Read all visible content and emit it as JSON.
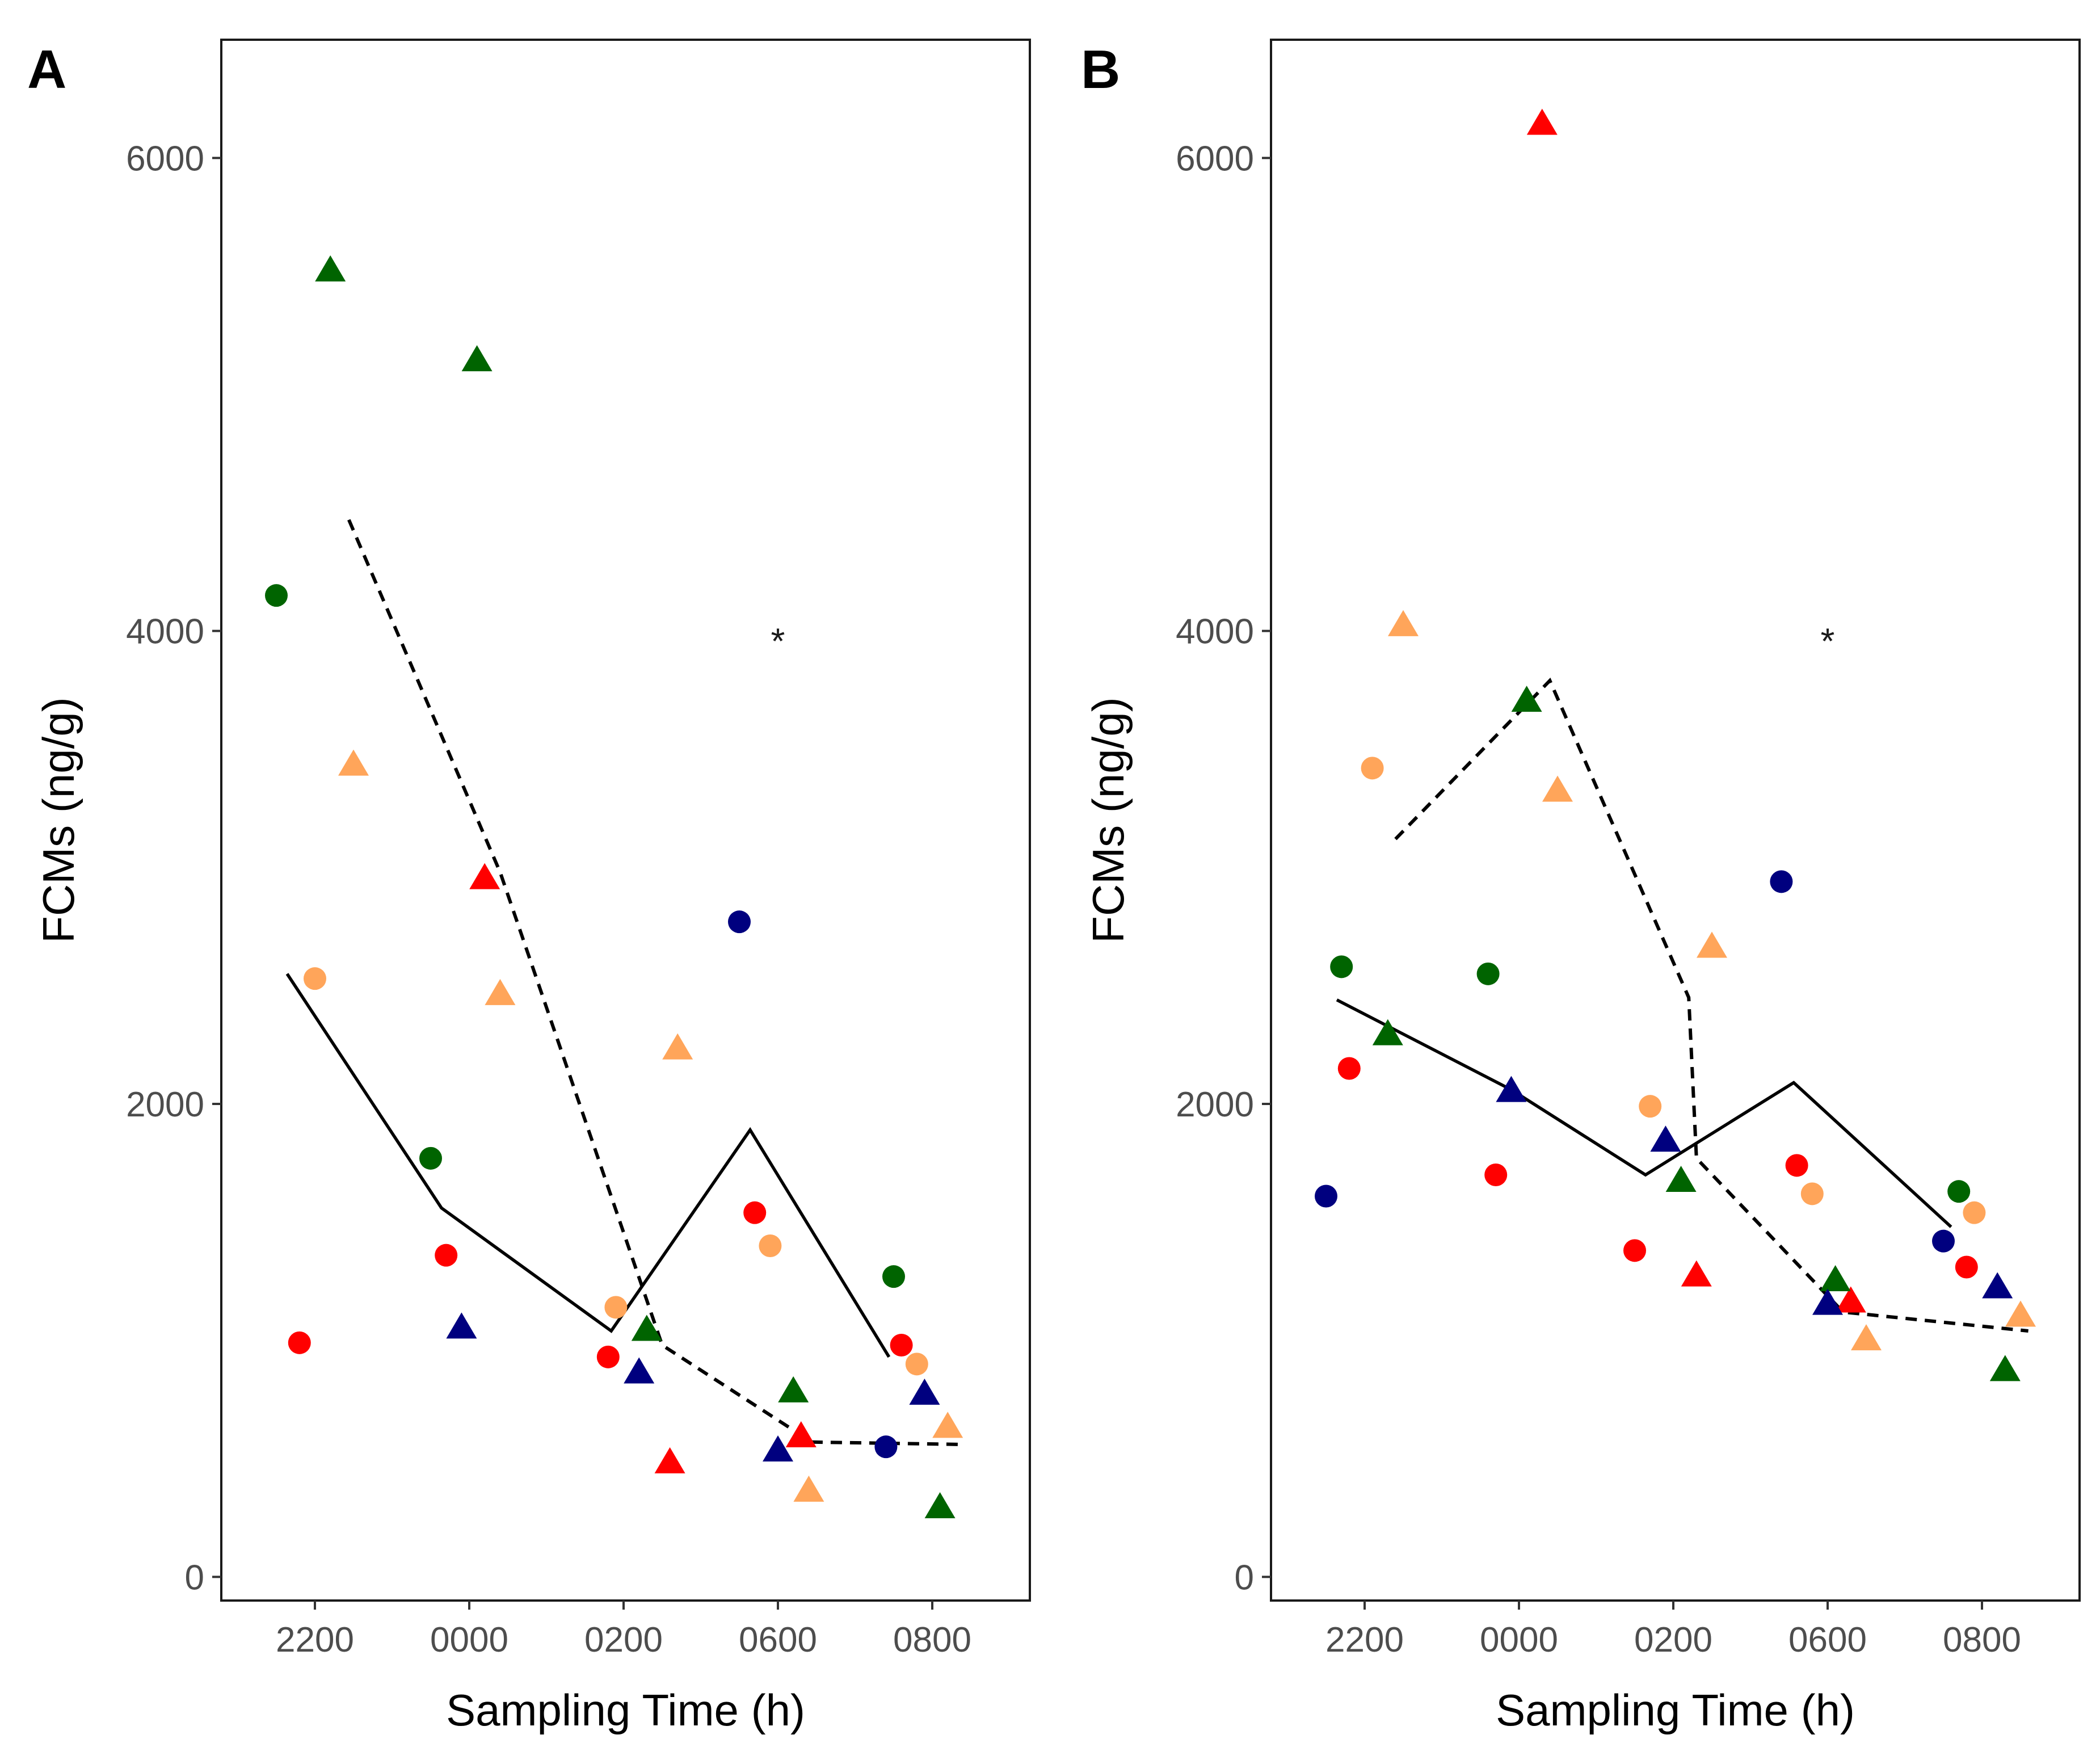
{
  "chart_data": [
    {
      "panel_label": "A",
      "type": "scatter",
      "xlabel": "Sampling Time (h)",
      "ylabel": "FCMs (ng/g)",
      "categories": [
        "2200",
        "0000",
        "0200",
        "0600",
        "0800"
      ],
      "ylim": [
        -100,
        6500
      ],
      "yticks": [
        0,
        2000,
        4000,
        6000
      ],
      "grid": false,
      "annotations": [
        {
          "text": "*",
          "x": "0600",
          "y": 4000
        }
      ],
      "point_groups": [
        {
          "name": "red circles",
          "color": "#ff0000",
          "shape": "circle",
          "points": [
            {
              "x": 2200,
              "offset": -0.1,
              "y": 990
            },
            {
              "x": "0000",
              "offset": -0.15,
              "y": 1360
            },
            {
              "x": "0200",
              "offset": -0.1,
              "y": 930
            },
            {
              "x": "0600",
              "offset": -0.15,
              "y": 1540
            },
            {
              "x": "0800",
              "offset": -0.2,
              "y": 980
            }
          ]
        },
        {
          "name": "red triangles",
          "color": "#ff0000",
          "shape": "triangle",
          "points": [
            {
              "x": "0000",
              "offset": 0.1,
              "y": 2950
            },
            {
              "x": "0200",
              "offset": 0.3,
              "y": 480
            },
            {
              "x": "0600",
              "offset": 0.15,
              "y": 590
            }
          ]
        },
        {
          "name": "green circles",
          "color": "#006400",
          "shape": "circle",
          "points": [
            {
              "x": 2200,
              "offset": -0.25,
              "y": 4150
            },
            {
              "x": "0000",
              "offset": -0.25,
              "y": 1770
            },
            {
              "x": "0800",
              "offset": -0.25,
              "y": 1270
            }
          ]
        },
        {
          "name": "green triangles",
          "color": "#006400",
          "shape": "triangle",
          "points": [
            {
              "x": 2200,
              "offset": 0.1,
              "y": 5520
            },
            {
              "x": "0000",
              "offset": 0.05,
              "y": 5140
            },
            {
              "x": "0200",
              "offset": 0.15,
              "y": 1040
            },
            {
              "x": "0600",
              "offset": 0.1,
              "y": 780
            },
            {
              "x": "0800",
              "offset": 0.05,
              "y": 290
            }
          ]
        },
        {
          "name": "orange circles",
          "color": "#ffa55a",
          "shape": "circle",
          "points": [
            {
              "x": 2200,
              "offset": 0,
              "y": 2530
            },
            {
              "x": "0200",
              "offset": -0.05,
              "y": 1140
            },
            {
              "x": "0600",
              "offset": -0.05,
              "y": 1400
            },
            {
              "x": "0800",
              "offset": -0.1,
              "y": 900
            }
          ]
        },
        {
          "name": "orange triangles",
          "color": "#ffa55a",
          "shape": "triangle",
          "points": [
            {
              "x": 2200,
              "offset": 0.25,
              "y": 3430
            },
            {
              "x": "0000",
              "offset": 0.2,
              "y": 2460
            },
            {
              "x": "0200",
              "offset": 0.35,
              "y": 2230
            },
            {
              "x": "0600",
              "offset": 0.2,
              "y": 360
            },
            {
              "x": "0800",
              "offset": 0.1,
              "y": 630
            }
          ]
        },
        {
          "name": "blue circles",
          "color": "#00007f",
          "shape": "circle",
          "points": [
            {
              "x": "0600",
              "offset": -0.25,
              "y": 2770
            },
            {
              "x": "0800",
              "offset": -0.3,
              "y": 550
            }
          ]
        },
        {
          "name": "blue triangles",
          "color": "#00007f",
          "shape": "triangle",
          "points": [
            {
              "x": "0000",
              "offset": -0.05,
              "y": 1050
            },
            {
              "x": "0200",
              "offset": 0.1,
              "y": 860
            },
            {
              "x": "0600",
              "offset": 0,
              "y": 530
            },
            {
              "x": "0800",
              "offset": -0.05,
              "y": 770
            }
          ]
        }
      ],
      "series": [
        {
          "name": "solid line",
          "style": "solid",
          "points": [
            {
              "x": 2200,
              "offset": -0.18,
              "y": 2550
            },
            {
              "x": "0000",
              "offset": -0.18,
              "y": 1560
            },
            {
              "x": "0200",
              "offset": -0.08,
              "y": 1040
            },
            {
              "x": "0600",
              "offset": -0.18,
              "y": 1890
            },
            {
              "x": "0800",
              "offset": -0.28,
              "y": 930
            }
          ]
        },
        {
          "name": "dashed line",
          "style": "dashed",
          "points": [
            {
              "x": 2200,
              "offset": 0.22,
              "y": 4470
            },
            {
              "x": "0000",
              "offset": 0.2,
              "y": 2980
            },
            {
              "x": "0200",
              "offset": 0.25,
              "y": 980
            },
            {
              "x": "0600",
              "offset": 0.22,
              "y": 570
            },
            {
              "x": "0800",
              "offset": 0.2,
              "y": 560
            }
          ]
        }
      ]
    },
    {
      "panel_label": "B",
      "type": "scatter",
      "xlabel": "Sampling Time (h)",
      "ylabel": "FCMs (ng/g)",
      "categories": [
        "2200",
        "0000",
        "0200",
        "0600",
        "0800"
      ],
      "ylim": [
        -100,
        6500
      ],
      "yticks": [
        0,
        2000,
        4000,
        6000
      ],
      "grid": false,
      "annotations": [
        {
          "text": "*",
          "x": "0600",
          "y": 4000
        }
      ],
      "point_groups": [
        {
          "name": "red circles",
          "color": "#ff0000",
          "shape": "circle",
          "points": [
            {
              "x": 2200,
              "offset": -0.1,
              "y": 2150
            },
            {
              "x": "0000",
              "offset": -0.15,
              "y": 1700
            },
            {
              "x": "0200",
              "offset": -0.25,
              "y": 1380
            },
            {
              "x": "0600",
              "offset": -0.2,
              "y": 1740
            },
            {
              "x": "0800",
              "offset": -0.1,
              "y": 1310
            }
          ]
        },
        {
          "name": "red triangles",
          "color": "#ff0000",
          "shape": "triangle",
          "points": [
            {
              "x": "0000",
              "offset": 0.15,
              "y": 6140
            },
            {
              "x": "0200",
              "offset": 0.15,
              "y": 1270
            },
            {
              "x": "0600",
              "offset": 0.15,
              "y": 1160
            }
          ]
        },
        {
          "name": "green circles",
          "color": "#006400",
          "shape": "circle",
          "points": [
            {
              "x": 2200,
              "offset": -0.15,
              "y": 2580
            },
            {
              "x": "0000",
              "offset": -0.2,
              "y": 2550
            },
            {
              "x": "0800",
              "offset": -0.15,
              "y": 1630
            }
          ]
        },
        {
          "name": "green triangles",
          "color": "#006400",
          "shape": "triangle",
          "points": [
            {
              "x": 2200,
              "offset": 0.15,
              "y": 2290
            },
            {
              "x": "0000",
              "offset": 0.05,
              "y": 3700
            },
            {
              "x": "0200",
              "offset": 0.05,
              "y": 1670
            },
            {
              "x": "0600",
              "offset": 0.05,
              "y": 1250
            },
            {
              "x": "0800",
              "offset": 0.15,
              "y": 870
            }
          ]
        },
        {
          "name": "orange circles",
          "color": "#ffa55a",
          "shape": "circle",
          "points": [
            {
              "x": 2200,
              "offset": 0.05,
              "y": 3420
            },
            {
              "x": "0200",
              "offset": -0.15,
              "y": 1990
            },
            {
              "x": "0600",
              "offset": -0.1,
              "y": 1620
            },
            {
              "x": "0800",
              "offset": -0.05,
              "y": 1540
            }
          ]
        },
        {
          "name": "orange triangles",
          "color": "#ffa55a",
          "shape": "triangle",
          "points": [
            {
              "x": 2200,
              "offset": 0.25,
              "y": 4020
            },
            {
              "x": "0000",
              "offset": 0.25,
              "y": 3320
            },
            {
              "x": "0200",
              "offset": 0.25,
              "y": 2660
            },
            {
              "x": "0600",
              "offset": 0.25,
              "y": 1000
            },
            {
              "x": "0800",
              "offset": 0.25,
              "y": 1100
            }
          ]
        },
        {
          "name": "blue circles",
          "color": "#00007f",
          "shape": "circle",
          "points": [
            {
              "x": 2200,
              "offset": -0.25,
              "y": 1610
            },
            {
              "x": "0600",
              "offset": -0.3,
              "y": 2940
            },
            {
              "x": "0800",
              "offset": -0.25,
              "y": 1420
            }
          ]
        },
        {
          "name": "blue triangles",
          "color": "#00007f",
          "shape": "triangle",
          "points": [
            {
              "x": "0000",
              "offset": -0.05,
              "y": 2050
            },
            {
              "x": "0200",
              "offset": -0.05,
              "y": 1840
            },
            {
              "x": "0600",
              "offset": 0,
              "y": 1150
            },
            {
              "x": "0800",
              "offset": 0.1,
              "y": 1220
            }
          ]
        }
      ],
      "series": [
        {
          "name": "solid line",
          "style": "solid",
          "points": [
            {
              "x": 2200,
              "offset": -0.18,
              "y": 2440
            },
            {
              "x": "0000",
              "offset": -0.05,
              "y": 2060
            },
            {
              "x": "0200",
              "offset": -0.18,
              "y": 1700
            },
            {
              "x": "0600",
              "offset": -0.22,
              "y": 2090
            },
            {
              "x": "0800",
              "offset": -0.2,
              "y": 1480
            }
          ]
        },
        {
          "name": "dashed line",
          "style": "dashed",
          "points": [
            {
              "x": 2200,
              "offset": 0.2,
              "y": 3120
            },
            {
              "x": "0000",
              "offset": 0.2,
              "y": 3790
            },
            {
              "x": "0200",
              "offset": 0.1,
              "y": 2450
            },
            {
              "x": "0200",
              "offset": 0.15,
              "y": 1770
            },
            {
              "x": "0600",
              "offset": 0.1,
              "y": 1120
            },
            {
              "x": "0800",
              "offset": 0.3,
              "y": 1040
            }
          ]
        }
      ]
    }
  ]
}
